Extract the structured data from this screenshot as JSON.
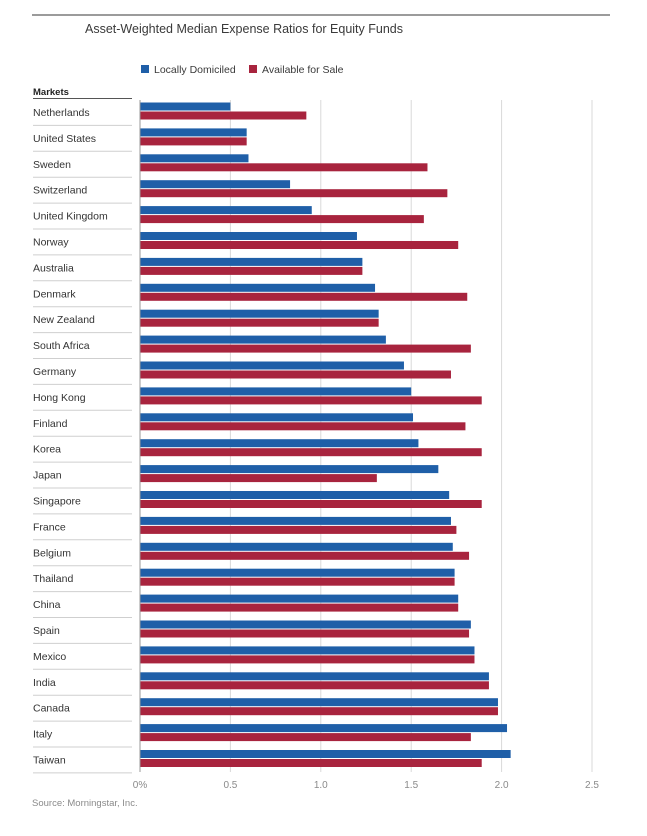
{
  "chart_data": {
    "type": "bar",
    "orientation": "horizontal",
    "title": "Asset-Weighted Median Expense Ratios for Equity Funds",
    "category_header": "Markets",
    "categories": [
      "Netherlands",
      "United States",
      "Sweden",
      "Switzerland",
      "United Kingdom",
      "Norway",
      "Australia",
      "Denmark",
      "New Zealand",
      "South Africa",
      "Germany",
      "Hong Kong",
      "Finland",
      "Korea",
      "Japan",
      "Singapore",
      "France",
      "Belgium",
      "Thailand",
      "China",
      "Spain",
      "Mexico",
      "India",
      "Canada",
      "Italy",
      "Taiwan"
    ],
    "series": [
      {
        "name": "Locally Domiciled",
        "color": "#1f5fa8",
        "values": [
          0.5,
          0.59,
          0.6,
          0.83,
          0.95,
          1.2,
          1.23,
          1.3,
          1.32,
          1.36,
          1.46,
          1.5,
          1.51,
          1.54,
          1.65,
          1.71,
          1.72,
          1.73,
          1.74,
          1.76,
          1.83,
          1.85,
          1.93,
          1.98,
          2.03,
          2.05
        ]
      },
      {
        "name": "Available for Sale",
        "color": "#a8243e",
        "values": [
          0.92,
          0.59,
          1.59,
          1.7,
          1.57,
          1.76,
          1.23,
          1.81,
          1.32,
          1.83,
          1.72,
          1.89,
          1.8,
          1.89,
          1.31,
          1.89,
          1.75,
          1.82,
          1.74,
          1.76,
          1.82,
          1.85,
          1.93,
          1.98,
          1.83,
          1.89
        ]
      }
    ],
    "x_ticks": [
      "0%",
      "0.5",
      "1.0",
      "1.5",
      "2.0",
      "2.5"
    ],
    "x_tick_values": [
      0,
      0.5,
      1.0,
      1.5,
      2.0,
      2.5
    ],
    "xlim": [
      0,
      2.5
    ],
    "grid": true,
    "legend_position": "top",
    "source": "Source: Morningstar, Inc."
  }
}
